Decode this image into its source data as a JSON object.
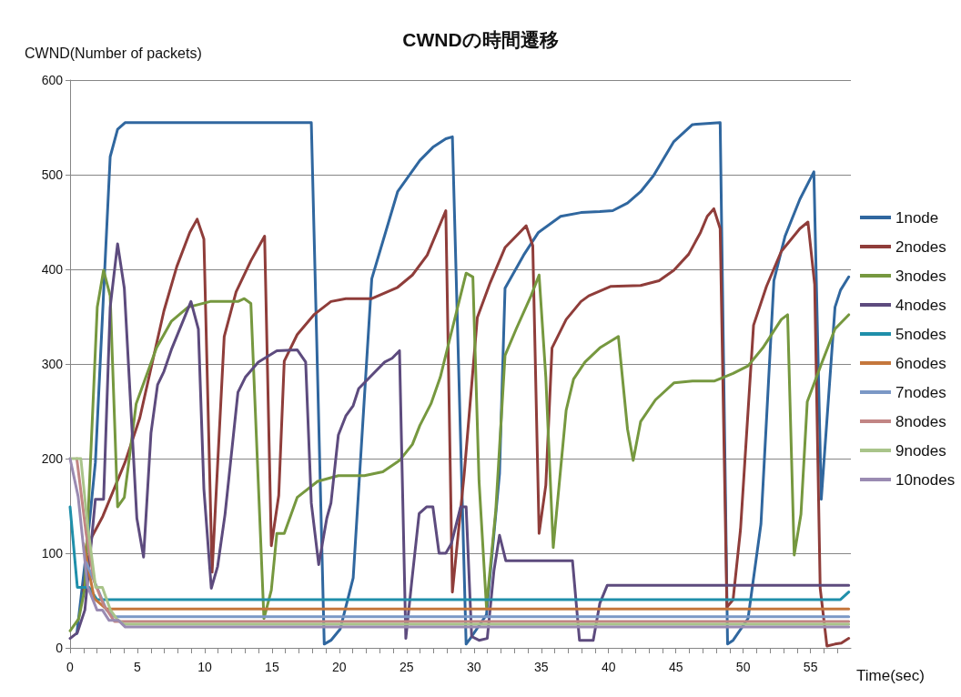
{
  "chart_data": {
    "type": "line",
    "title": "CWNDの時間遷移",
    "xlabel": "Time(sec)",
    "ylabel": "CWND(Number of packets)",
    "xlim": [
      0,
      58
    ],
    "xticks": [
      0,
      5,
      10,
      15,
      20,
      25,
      30,
      35,
      40,
      45,
      50,
      55
    ],
    "ylim": [
      0,
      600
    ],
    "yticks": [
      0,
      100,
      200,
      300,
      400,
      500,
      600
    ],
    "grid": "y",
    "legend": "right",
    "marker": "none",
    "line_style": "solid",
    "series": [
      {
        "name": "1node",
        "color": "#30679f",
        "x": [
          0.5,
          1.33,
          1.88,
          2.98,
          3.53,
          4.08,
          17.92,
          18.88,
          19.38,
          20.07,
          21.03,
          22.41,
          24.33,
          25.98,
          26.95,
          27.91,
          28.4,
          29.42,
          29.83,
          30.93,
          31.9,
          32.31,
          33.69,
          34.79,
          36.44,
          37.95,
          39.35,
          40.31,
          41.41,
          42.38,
          43.34,
          44.85,
          46.23,
          48.29,
          48.84,
          49.25,
          50.36,
          51.32,
          52.28,
          53.11,
          54.21,
          55.25,
          55.8,
          56.82,
          57.23,
          57.84
        ],
        "values": [
          15,
          117,
          196,
          519,
          548,
          555,
          555,
          4,
          8,
          20,
          74,
          390,
          482,
          515,
          529,
          538,
          540,
          4,
          12,
          35,
          184,
          380,
          415,
          439,
          456,
          460,
          461,
          462,
          470,
          482,
          499,
          535,
          553,
          555,
          4,
          8,
          31,
          131,
          388,
          435,
          474,
          503,
          157,
          360,
          378,
          392
        ]
      },
      {
        "name": "2nodes",
        "color": "#8f3d3a",
        "x": [
          1.0,
          1.61,
          2.43,
          4.08,
          5.18,
          6.97,
          7.93,
          8.89,
          9.44,
          9.94,
          10.55,
          11.45,
          12.33,
          13.43,
          14.45,
          14.95,
          15.5,
          15.91,
          16.87,
          18.11,
          19.38,
          20.48,
          22.41,
          24.33,
          25.43,
          26.53,
          27.91,
          28.4,
          29.28,
          30.25,
          31.21,
          32.31,
          33.88,
          34.37,
          34.84,
          35.34,
          35.8,
          36.85,
          37.95,
          38.53,
          40.18,
          42.38,
          43.75,
          44.85,
          45.95,
          46.83,
          47.33,
          47.82,
          48.29,
          48.79,
          49.25,
          49.8,
          50.77,
          51.73,
          52.83,
          54.21,
          54.81,
          55.31,
          55.72,
          56.22,
          56.82,
          57.29,
          57.84
        ],
        "values": [
          60,
          117,
          139,
          196,
          243,
          356,
          403,
          439,
          453,
          432,
          80,
          329,
          376,
          409,
          435,
          108,
          161,
          303,
          331,
          352,
          366,
          369,
          369,
          381,
          394,
          415,
          462,
          59,
          184,
          349,
          386,
          423,
          446,
          425,
          121,
          172,
          317,
          347,
          366,
          372,
          382,
          383,
          388,
          399,
          416,
          439,
          456,
          464,
          443,
          43,
          51,
          125,
          341,
          382,
          419,
          443,
          450,
          384,
          63,
          2,
          4,
          5,
          10
        ]
      },
      {
        "name": "3nodes",
        "color": "#76983f",
        "x": [
          0,
          0.65,
          1.1,
          2.02,
          2.49,
          2.98,
          3.53,
          4.03,
          4.91,
          6.42,
          7.52,
          8.76,
          10.41,
          12.47,
          12.94,
          13.43,
          14.4,
          14.95,
          15.36,
          15.91,
          16.87,
          18.39,
          19.93,
          21.86,
          23.23,
          24.47,
          25.43,
          25.98,
          26.81,
          27.5,
          28.18,
          29.42,
          29.92,
          30.38,
          30.93,
          31.62,
          32.31,
          33.14,
          34.24,
          34.84,
          35.34,
          35.89,
          36.85,
          37.4,
          38.25,
          39.35,
          40.73,
          41.41,
          41.83,
          42.38,
          43.48,
          44.85,
          46.23,
          47.88,
          49.25,
          50.36,
          51.46,
          52.83,
          53.3,
          53.79,
          54.29,
          54.76,
          55.86,
          56.82,
          57.84
        ],
        "values": [
          18,
          31,
          63,
          360,
          399,
          372,
          149,
          159,
          258,
          317,
          345,
          360,
          366,
          366,
          369,
          364,
          31,
          61,
          121,
          121,
          159,
          176,
          182,
          182,
          186,
          198,
          215,
          235,
          258,
          286,
          325,
          396,
          392,
          176,
          43,
          145,
          309,
          337,
          372,
          394,
          286,
          106,
          251,
          284,
          302,
          317,
          329,
          231,
          198,
          239,
          262,
          280,
          282,
          282,
          290,
          298,
          317,
          347,
          352,
          98,
          141,
          260,
          302,
          337,
          352
        ]
      },
      {
        "name": "4nodes",
        "color": "#5d4b7e",
        "x": [
          0,
          0.54,
          1.1,
          1.88,
          2.49,
          2.98,
          3.53,
          4.03,
          4.96,
          5.46,
          6.01,
          6.5,
          6.97,
          7.52,
          8.98,
          9.53,
          9.94,
          10.49,
          10.96,
          11.51,
          12.47,
          13.02,
          13.98,
          15.36,
          16.87,
          17.5,
          17.92,
          18.47,
          19.07,
          19.38,
          19.93,
          20.48,
          21.03,
          21.44,
          22.27,
          23.37,
          23.92,
          24.47,
          24.94,
          25.38,
          25.93,
          26.48,
          26.95,
          27.41,
          27.91,
          28.32,
          29.01,
          29.42,
          29.83,
          30.38,
          30.99,
          31.49,
          31.9,
          32.37,
          37.32,
          37.84,
          38.86,
          39.35,
          39.9,
          57.84
        ],
        "values": [
          10,
          16,
          40,
          157,
          157,
          360,
          427,
          380,
          137,
          96,
          227,
          278,
          292,
          315,
          366,
          337,
          168,
          63,
          86,
          141,
          270,
          286,
          302,
          314,
          315,
          302,
          153,
          88,
          137,
          153,
          225,
          245,
          256,
          274,
          286,
          302,
          306,
          314,
          10,
          70,
          142,
          149,
          149,
          100,
          100,
          110,
          149,
          149,
          12,
          8,
          10,
          82,
          119,
          92,
          92,
          8,
          8,
          47,
          66,
          66
        ]
      },
      {
        "name": "5nodes",
        "color": "#1f8faa",
        "x": [
          0,
          0.54,
          1.4,
          2.0,
          57.23,
          57.84
        ],
        "values": [
          149,
          64,
          64,
          51,
          51,
          59
        ]
      },
      {
        "name": "6nodes",
        "color": "#c5773c",
        "x": [
          1.0,
          1.8,
          2.7,
          57.84
        ],
        "values": [
          110,
          52,
          41,
          41
        ]
      },
      {
        "name": "7nodes",
        "color": "#7b98c6",
        "x": [
          1.2,
          2.0,
          2.7,
          3.3,
          57.84
        ],
        "values": [
          90,
          64,
          40,
          33,
          33
        ]
      },
      {
        "name": "8nodes",
        "color": "#c28584",
        "x": [
          0.5,
          1.2,
          1.8,
          2.5,
          3.3,
          57.84
        ],
        "values": [
          200,
          120,
          70,
          45,
          28,
          28
        ]
      },
      {
        "name": "9nodes",
        "color": "#a9c48a",
        "x": [
          0,
          0.8,
          1.3,
          1.9,
          2.4,
          3.0,
          3.5,
          4.0,
          57.84
        ],
        "values": [
          200,
          200,
          130,
          64,
          64,
          40,
          30,
          25,
          25
        ]
      },
      {
        "name": "10nodes",
        "color": "#9a8bb2",
        "x": [
          0,
          0.6,
          1.3,
          2.0,
          2.4,
          2.9,
          3.6,
          4.1,
          57.84
        ],
        "values": [
          200,
          160,
          65,
          40,
          40,
          29,
          29,
          22,
          22
        ]
      }
    ]
  }
}
